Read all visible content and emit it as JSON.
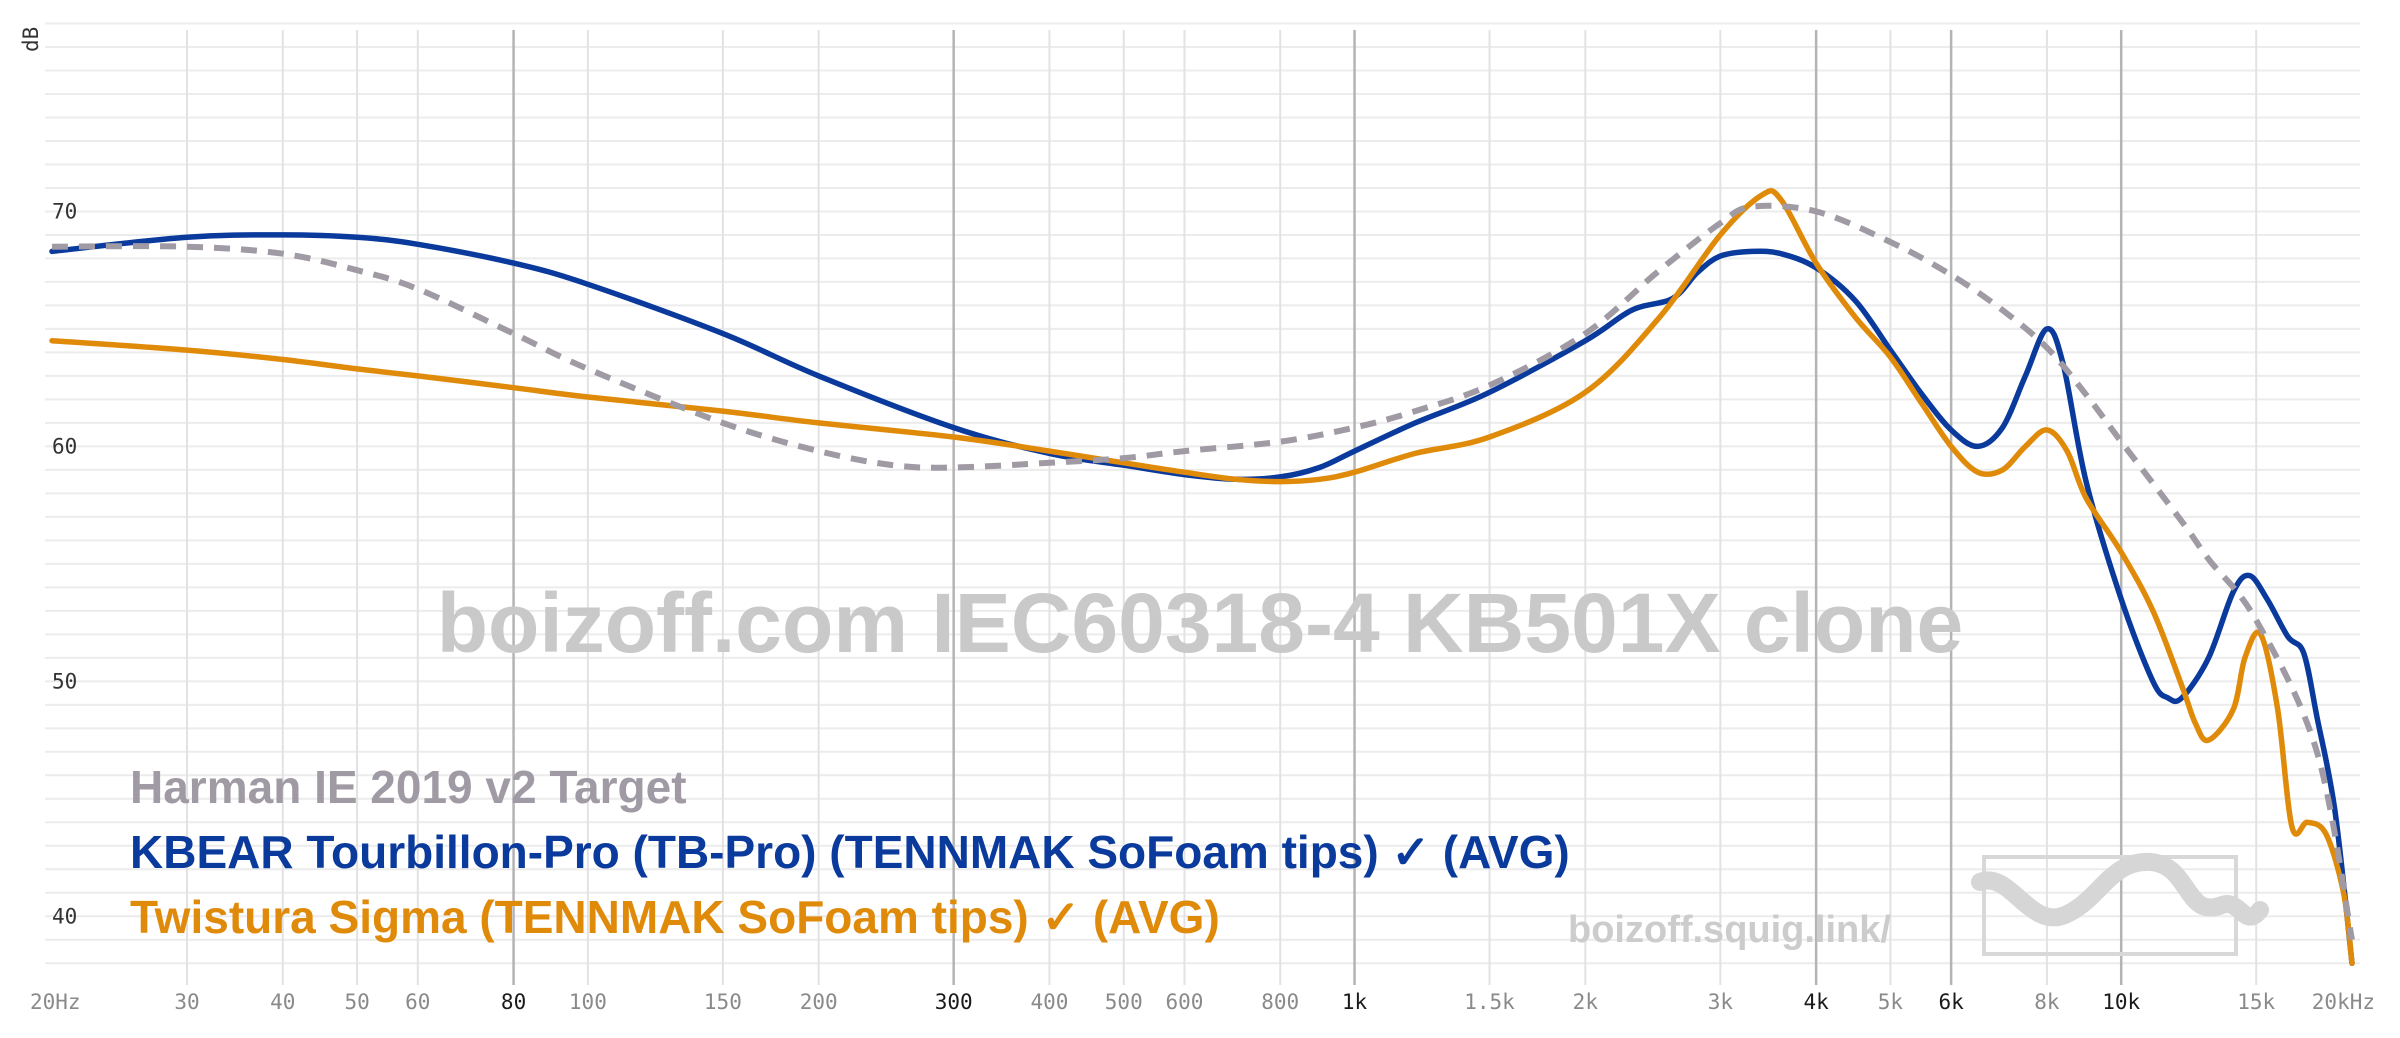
{
  "chart_data": {
    "type": "line",
    "x_scale": "log",
    "ylabel": "dB",
    "ylim": [
      37.5,
      79
    ],
    "xlim": [
      20,
      20000
    ],
    "x_tick_labels": [
      {
        "f": 20,
        "label": "20Hz",
        "bold": false
      },
      {
        "f": 30,
        "label": "30",
        "bold": false
      },
      {
        "f": 40,
        "label": "40",
        "bold": false
      },
      {
        "f": 50,
        "label": "50",
        "bold": false
      },
      {
        "f": 60,
        "label": "60",
        "bold": false
      },
      {
        "f": 80,
        "label": "80",
        "bold": true
      },
      {
        "f": 100,
        "label": "100",
        "bold": false
      },
      {
        "f": 150,
        "label": "150",
        "bold": false
      },
      {
        "f": 200,
        "label": "200",
        "bold": false
      },
      {
        "f": 300,
        "label": "300",
        "bold": true
      },
      {
        "f": 400,
        "label": "400",
        "bold": false
      },
      {
        "f": 500,
        "label": "500",
        "bold": false
      },
      {
        "f": 600,
        "label": "600",
        "bold": false
      },
      {
        "f": 800,
        "label": "800",
        "bold": false
      },
      {
        "f": 1000,
        "label": "1k",
        "bold": true
      },
      {
        "f": 1500,
        "label": "1.5k",
        "bold": false
      },
      {
        "f": 2000,
        "label": "2k",
        "bold": false
      },
      {
        "f": 3000,
        "label": "3k",
        "bold": false
      },
      {
        "f": 4000,
        "label": "4k",
        "bold": true
      },
      {
        "f": 5000,
        "label": "5k",
        "bold": false
      },
      {
        "f": 6000,
        "label": "6k",
        "bold": true
      },
      {
        "f": 8000,
        "label": "8k",
        "bold": false
      },
      {
        "f": 10000,
        "label": "10k",
        "bold": true
      },
      {
        "f": 15000,
        "label": "15k",
        "bold": false
      },
      {
        "f": 20000,
        "label": "20kHz",
        "bold": false
      }
    ],
    "major_x_lines": [
      80,
      300,
      1000,
      4000,
      6000,
      10000
    ],
    "y_tick_labels": [
      {
        "v": 70,
        "label": "70"
      },
      {
        "v": 60,
        "label": "60"
      },
      {
        "v": 50,
        "label": "50"
      },
      {
        "v": 40,
        "label": "40"
      }
    ],
    "grid": true,
    "watermark": "boizoff.com IEC60318-4 KB501X clone",
    "site_label": "boizoff.squig.link/",
    "series": [
      {
        "name": "Harman IE 2019 v2 Target",
        "color": "#a09aa4",
        "dashed": true,
        "points": [
          [
            20,
            68.5
          ],
          [
            30,
            68.5
          ],
          [
            40,
            68.2
          ],
          [
            50,
            67.5
          ],
          [
            60,
            66.7
          ],
          [
            80,
            64.8
          ],
          [
            100,
            63.3
          ],
          [
            150,
            61.0
          ],
          [
            200,
            59.8
          ],
          [
            250,
            59.2
          ],
          [
            300,
            59.1
          ],
          [
            400,
            59.3
          ],
          [
            500,
            59.5
          ],
          [
            600,
            59.8
          ],
          [
            800,
            60.2
          ],
          [
            1000,
            60.8
          ],
          [
            1200,
            61.5
          ],
          [
            1500,
            62.6
          ],
          [
            2000,
            64.8
          ],
          [
            2500,
            67.5
          ],
          [
            3000,
            69.5
          ],
          [
            3300,
            70.2
          ],
          [
            4000,
            70.0
          ],
          [
            5000,
            68.7
          ],
          [
            6000,
            67.3
          ],
          [
            7000,
            65.8
          ],
          [
            8000,
            64.2
          ],
          [
            9000,
            62.2
          ],
          [
            10000,
            60.2
          ],
          [
            12000,
            56.8
          ],
          [
            13000,
            55.2
          ],
          [
            15000,
            52.6
          ],
          [
            18000,
            47.0
          ],
          [
            20000,
            39.0
          ]
        ]
      },
      {
        "name": "KBEAR Tourbillon-Pro (TB-Pro) (TENNMAK SoFoam tips) ✓ (AVG)",
        "color": "#0a3a9c",
        "dashed": false,
        "points": [
          [
            20,
            68.3
          ],
          [
            30,
            68.9
          ],
          [
            40,
            69.0
          ],
          [
            50,
            68.9
          ],
          [
            60,
            68.6
          ],
          [
            80,
            67.8
          ],
          [
            100,
            66.9
          ],
          [
            150,
            64.8
          ],
          [
            200,
            63.0
          ],
          [
            300,
            60.8
          ],
          [
            400,
            59.7
          ],
          [
            500,
            59.2
          ],
          [
            600,
            58.8
          ],
          [
            700,
            58.6
          ],
          [
            800,
            58.7
          ],
          [
            900,
            59.1
          ],
          [
            1000,
            59.8
          ],
          [
            1200,
            61.0
          ],
          [
            1500,
            62.3
          ],
          [
            2000,
            64.5
          ],
          [
            2300,
            65.8
          ],
          [
            2600,
            66.3
          ],
          [
            2800,
            67.4
          ],
          [
            3000,
            68.1
          ],
          [
            3300,
            68.3
          ],
          [
            3600,
            68.2
          ],
          [
            4000,
            67.6
          ],
          [
            4500,
            66.2
          ],
          [
            5000,
            64.1
          ],
          [
            5500,
            62.2
          ],
          [
            6000,
            60.7
          ],
          [
            6500,
            60.0
          ],
          [
            7000,
            60.8
          ],
          [
            7500,
            63.0
          ],
          [
            8000,
            65.0
          ],
          [
            8400,
            63.5
          ],
          [
            9000,
            58.5
          ],
          [
            10000,
            53.5
          ],
          [
            11000,
            50.0
          ],
          [
            11500,
            49.3
          ],
          [
            12000,
            49.3
          ],
          [
            13000,
            51.0
          ],
          [
            14000,
            53.8
          ],
          [
            14700,
            54.5
          ],
          [
            15500,
            53.5
          ],
          [
            16500,
            51.9
          ],
          [
            17300,
            51.2
          ],
          [
            18000,
            48.5
          ],
          [
            19000,
            44.5
          ],
          [
            20000,
            38.0
          ]
        ]
      },
      {
        "name": "Twistura Sigma (TENNMAK SoFoam tips) ✓ (AVG)",
        "color": "#e08a0a",
        "dashed": false,
        "points": [
          [
            20,
            64.5
          ],
          [
            30,
            64.1
          ],
          [
            40,
            63.7
          ],
          [
            50,
            63.3
          ],
          [
            60,
            63.0
          ],
          [
            80,
            62.5
          ],
          [
            100,
            62.1
          ],
          [
            150,
            61.5
          ],
          [
            200,
            61.0
          ],
          [
            300,
            60.4
          ],
          [
            400,
            59.8
          ],
          [
            500,
            59.3
          ],
          [
            600,
            58.9
          ],
          [
            700,
            58.6
          ],
          [
            800,
            58.5
          ],
          [
            900,
            58.6
          ],
          [
            1000,
            58.9
          ],
          [
            1200,
            59.7
          ],
          [
            1500,
            60.4
          ],
          [
            2000,
            62.3
          ],
          [
            2500,
            65.5
          ],
          [
            3000,
            69.0
          ],
          [
            3400,
            70.7
          ],
          [
            3600,
            70.5
          ],
          [
            4000,
            67.8
          ],
          [
            4500,
            65.5
          ],
          [
            5000,
            63.8
          ],
          [
            5500,
            61.8
          ],
          [
            6000,
            60.0
          ],
          [
            6500,
            58.9
          ],
          [
            7000,
            59.0
          ],
          [
            7500,
            60.0
          ],
          [
            8000,
            60.7
          ],
          [
            8500,
            59.8
          ],
          [
            9000,
            57.8
          ],
          [
            10000,
            55.5
          ],
          [
            11000,
            53.0
          ],
          [
            12000,
            49.8
          ],
          [
            12500,
            48.2
          ],
          [
            13000,
            47.5
          ],
          [
            14000,
            48.8
          ],
          [
            14500,
            51.0
          ],
          [
            15200,
            52.0
          ],
          [
            16000,
            48.8
          ],
          [
            16700,
            43.8
          ],
          [
            17500,
            44.0
          ],
          [
            18500,
            43.5
          ],
          [
            19500,
            41.0
          ],
          [
            20000,
            38.0
          ]
        ]
      }
    ]
  }
}
